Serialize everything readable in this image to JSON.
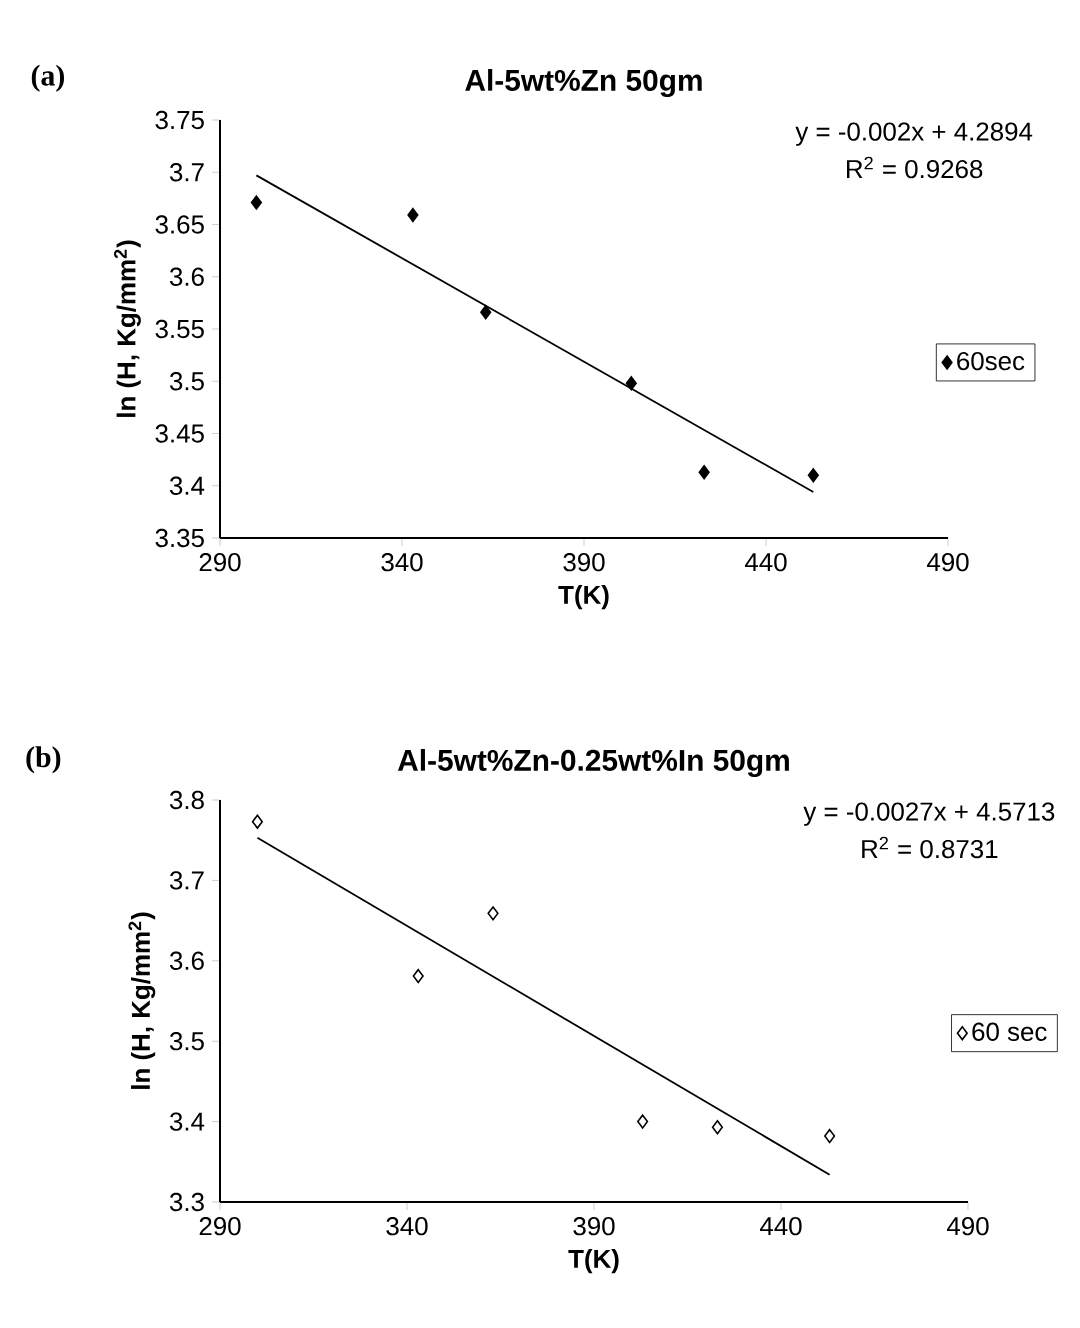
{
  "chart_data": [
    {
      "type": "scatter",
      "title": "Al-5wt%Zn  50gm",
      "xlabel": "T(K)",
      "ylabel": "ln (H, Kg/mm$^{2}$)",
      "annotations": [
        "(a)",
        "y = -0.002x + 4.2894",
        "R$^{2}$ = 0.9268"
      ],
      "xlim": [
        290,
        490
      ],
      "xticks": [
        290,
        340,
        390,
        440,
        490
      ],
      "ylim": [
        3.35,
        3.75
      ],
      "yticks": [
        3.35,
        3.4,
        3.45,
        3.5,
        3.55,
        3.6,
        3.65,
        3.7,
        3.75
      ],
      "legend": "right",
      "marker": "diamond",
      "series": [
        {
          "name": "60sec",
          "color": "#000000",
          "x": [
            300,
            343,
            363,
            403,
            423,
            453
          ],
          "values": [
            3.671,
            3.659,
            3.566,
            3.498,
            3.413,
            3.41
          ]
        },
        {
          "type": "line",
          "marker": "none",
          "color": "#000000",
          "x": [
            300,
            453
          ],
          "values": [
            3.697,
            3.394
          ]
        }
      ]
    },
    {
      "type": "scatter",
      "title": "Al-5wt%Zn-0.25wt%In  50gm",
      "xlabel": "T(K)",
      "ylabel": "ln (H, Kg/mm$^{2}$)",
      "annotations": [
        "(b)",
        "y = -0.0027x + 4.5713",
        "R$^{2}$ = 0.8731"
      ],
      "xlim": [
        290,
        490
      ],
      "xticks": [
        290,
        340,
        390,
        440,
        490
      ],
      "ylim": [
        3.3,
        3.8
      ],
      "yticks": [
        3.3,
        3.4,
        3.5,
        3.6,
        3.7,
        3.8
      ],
      "legend": "right",
      "marker": "diamond",
      "series": [
        {
          "name": "60 sec",
          "color": "#ffffff",
          "x": [
            300,
            343,
            363,
            403,
            423,
            453
          ],
          "values": [
            3.773,
            3.581,
            3.659,
            3.4,
            3.393,
            3.382
          ]
        },
        {
          "type": "line",
          "marker": "none",
          "color": "#000000",
          "x": [
            300,
            453
          ],
          "values": [
            3.753,
            3.334
          ]
        }
      ]
    }
  ]
}
